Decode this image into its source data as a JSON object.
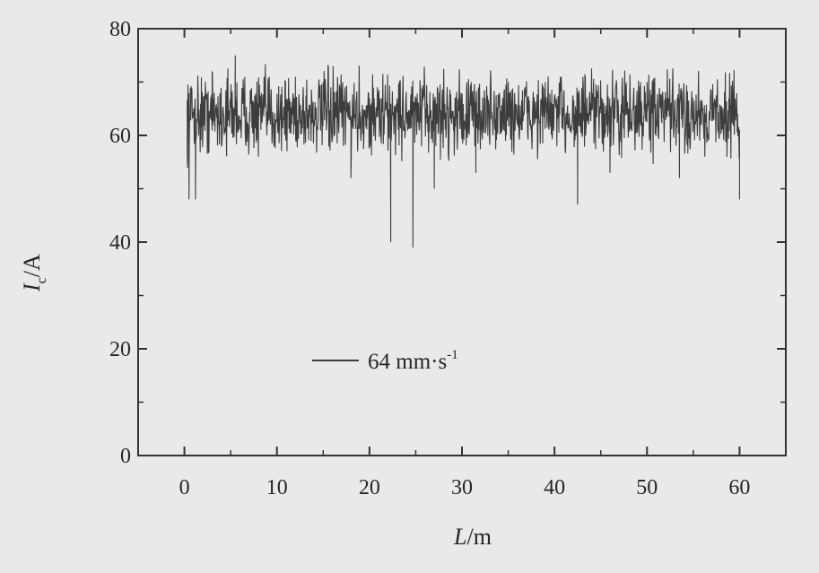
{
  "chart_data": {
    "type": "line",
    "xlabel_main": "L",
    "xlabel_unit": "/m",
    "ylabel_main": "I",
    "ylabel_sub": "c",
    "ylabel_unit": "/A",
    "xlim": [
      -5,
      65
    ],
    "ylim": [
      0,
      80
    ],
    "xticks": [
      0,
      10,
      20,
      30,
      40,
      50,
      60
    ],
    "yticks": [
      0,
      20,
      40,
      60,
      80
    ],
    "grid": false,
    "legend_position": "lower-left",
    "series": [
      {
        "name": "64 mm·s",
        "name_sup": "-1",
        "color": "#3d3d3d",
        "x_range": [
          0.3,
          60
        ],
        "baseline": 64,
        "noise_amplitude": 4.5,
        "x": [
          0.3,
          0.5,
          1.2,
          3,
          5.5,
          8,
          12,
          15,
          18,
          22.3,
          24.7,
          27,
          31.5,
          35,
          39,
          42.5,
          46,
          50,
          53.5,
          57,
          60
        ],
        "y": [
          56,
          48,
          48,
          72,
          75,
          56,
          71,
          70,
          52,
          40,
          39,
          50,
          53,
          70,
          70,
          47,
          53,
          70,
          52,
          65,
          48
        ]
      }
    ]
  },
  "colors": {
    "background": "#e9e9e9",
    "axis": "#333333",
    "trace": "#3d3d3d"
  }
}
